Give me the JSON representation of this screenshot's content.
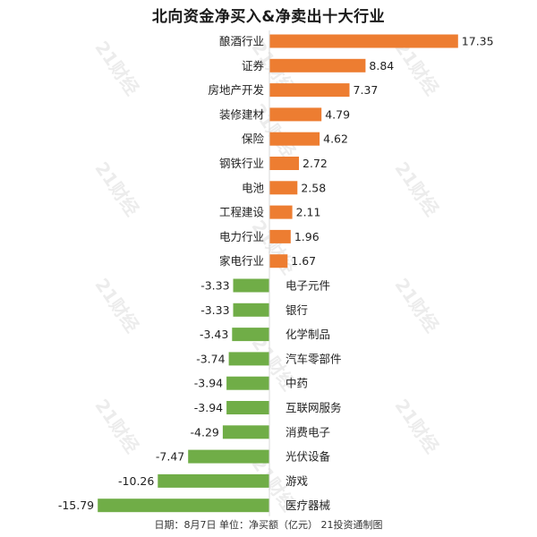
{
  "title": "北向资金净买入&净卖出十大行业",
  "footer": "日期：8月7日  单位：净买额（亿元） 21投资通制图",
  "watermark": "21财经",
  "colors": {
    "positive": "#ED7D31",
    "negative": "#70AD47"
  },
  "chart_data": {
    "type": "bar",
    "orientation": "horizontal",
    "title": "北向资金净买入&净卖出十大行业",
    "categories": [
      "酿酒行业",
      "证券",
      "房地产开发",
      "装修建材",
      "保险",
      "钢铁行业",
      "电池",
      "工程建设",
      "电力行业",
      "家电行业",
      "电子元件",
      "银行",
      "化学制品",
      "汽车零部件",
      "中药",
      "互联网服务",
      "消费电子",
      "光伏设备",
      "游戏",
      "医疗器械"
    ],
    "values": [
      17.35,
      8.84,
      7.37,
      4.79,
      4.62,
      2.72,
      2.58,
      2.11,
      1.96,
      1.67,
      -3.33,
      -3.33,
      -3.43,
      -3.74,
      -3.94,
      -3.94,
      -4.29,
      -7.47,
      -10.26,
      -15.79
    ],
    "value_labels": [
      "17.35",
      "8.84",
      "7.37",
      "4.79",
      "4.62",
      "2.72",
      "2.58",
      "2.11",
      "1.96",
      "1.67",
      "-3.33",
      "-3.33",
      "-3.43",
      "-3.74",
      "-3.94",
      "-3.94",
      "-4.29",
      "-7.47",
      "-10.26",
      "-15.79"
    ],
    "xlim": [
      -17.5,
      19.5
    ],
    "grid": false,
    "legend": "none"
  }
}
